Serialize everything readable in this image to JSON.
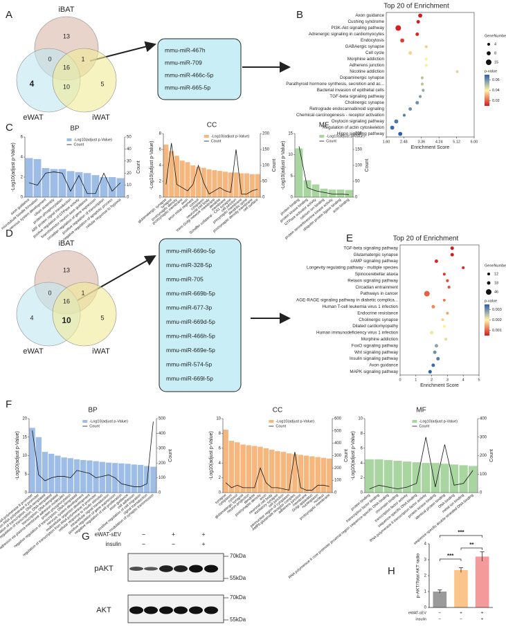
{
  "panel_labels": [
    "A",
    "B",
    "C",
    "D",
    "E",
    "F",
    "G",
    "H"
  ],
  "venn": [
    {
      "sets": {
        "top": "iBAT",
        "left": "eWAT",
        "right": "iWAT"
      },
      "counts": {
        "top": 13,
        "top_left": 0,
        "center": 16,
        "top_right": 1,
        "left": 4,
        "bottom": 10,
        "right": 5
      },
      "highlight": "left"
    },
    {
      "sets": {
        "top": "iBAT",
        "left": "eWAT",
        "right": "iWAT"
      },
      "counts": {
        "top": 13,
        "top_left": 0,
        "center": 16,
        "top_right": 1,
        "left": 4,
        "bottom": 10,
        "right": 5
      },
      "highlight": "bottom"
    }
  ],
  "mirna_lists": [
    [
      "mmu-miR-467h",
      "mmu-miR-709",
      "mmu-miR-466c-5p",
      "mmu-miR-665-5p"
    ],
    [
      "mmu-miR-669o-5p",
      "mmu-miR-328-5p",
      "mmu-miR-705",
      "mmu-miR-669b-5p",
      "mmu-miR-677-3p",
      "mmu-miR-669d-5p",
      "mmu-miR-466h-5p",
      "mmu-miR-669e-5p",
      "mmu-miR-574-5p",
      "mmu-miR-669l-5p"
    ]
  ],
  "chart_data": [
    {
      "type": "dot",
      "title": "Top 20 of Enrichment",
      "categories": [
        "Axon guidance",
        "Cushing syndrome",
        "PI3K-Akt signaling pathway",
        "Adrenergic signaling in cardiomyocytes",
        "Endocytosis",
        "GABAergic synapse",
        "Cell cycle",
        "Morphine addiction",
        "Adherens junction",
        "Nicotine addiction",
        "Dopaminergic synapse",
        "Parathyroid hormone synthesis, secretion and ac...",
        "Bacterial invasion of epithelial cells",
        "TGF-beta signaling pathway",
        "Cholinergic synapse",
        "Retrograde endocannabinoid signaling",
        "Chemical carcinogenesis - receptor activation",
        "Oxytocin signaling pathway",
        "Regulation of actin cytoskeleton",
        "Hippo signaling pathway"
      ],
      "values": [
        3.3,
        3.2,
        2.2,
        3.15,
        2.4,
        3.6,
        2.8,
        3.6,
        3.6,
        5.15,
        3.4,
        3.4,
        3.45,
        3.3,
        3.15,
        2.8,
        2.5,
        2.1,
        1.9,
        2.3
      ],
      "pvalues": [
        0.01,
        0.01,
        0.011,
        0.012,
        0.015,
        0.035,
        0.036,
        0.04,
        0.04,
        0.045,
        0.05,
        0.05,
        0.055,
        0.058,
        0.06,
        0.06,
        0.064,
        0.065,
        0.068,
        0.07
      ],
      "gene_numbers": [
        8,
        6,
        15,
        6,
        8,
        4,
        6,
        4,
        4,
        4,
        4,
        4,
        4,
        4,
        6,
        6,
        4,
        8,
        8,
        8
      ],
      "xlabel": "Enrichment Score",
      "xlim": [
        1.6,
        6.0
      ],
      "xticks": [
        {
          "value": 1.6,
          "label": "1.60"
        },
        {
          "value": 2.48,
          "label": "2.48"
        },
        {
          "value": 3.36,
          "label": "3.36"
        },
        {
          "value": 4.24,
          "label": "4.24"
        },
        {
          "value": 5.12,
          "label": "5.12"
        },
        {
          "value": 6.0,
          "label": "6.00"
        }
      ],
      "size_legend": {
        "title": "GeneNumber",
        "values": [
          4,
          8,
          15
        ]
      },
      "color_legend": {
        "title": "p-value",
        "lim": [
          0.01,
          0.07
        ],
        "ticks": [
          0.06,
          0.04,
          0.02
        ]
      }
    },
    {
      "type": "bar_line",
      "title": "BP",
      "categories": [
        "axon guidance",
        "microtubule bundle formation",
        "nervous system development",
        "cilium assembly",
        "protein phosphorylation",
        "ARF protein signal transduction",
        "positive regulation of GTPase activity",
        "branchiomotor neuron axon guidance",
        "circadian regulation of gene expression",
        "positive regulation of transcription",
        "negative regulation of apoptotic process",
        "cellular response to hypoxia"
      ],
      "series": [
        {
          "name": "-Log10(adjust p-Value)",
          "color": "#9dbde6",
          "values": [
            3.9,
            3.8,
            2.9,
            2.8,
            2.8,
            2.6,
            2.5,
            2.4,
            2.2,
            2.0,
            2.0,
            1.9
          ]
        },
        {
          "name": "Count",
          "color": "#111111",
          "axis": "y2",
          "values": [
            12,
            10,
            20,
            21,
            20,
            5,
            18,
            3,
            3,
            20,
            5,
            12
          ]
        }
      ],
      "ylabel": "-Log10(adjust p-Value)",
      "y2label": "Count",
      "ylim": [
        0,
        6
      ],
      "yticks": [
        0,
        2,
        4,
        6
      ],
      "y2lim": [
        0,
        50
      ],
      "y2ticks": [
        0,
        10,
        20,
        30,
        40,
        50
      ]
    },
    {
      "type": "bar_line",
      "title": "CC",
      "categories": [
        "glutamatergic synapse",
        "synapse",
        "postsynaptic density",
        "postsynaptic membrane",
        "axon",
        "axon initial segment",
        "cytosol",
        "cytoplasm",
        "neuronal cell body",
        "trans-Golgi network membrane",
        "dendrite",
        "membrane",
        "Schaffer collateral - CA1 synapse",
        "cell junction",
        "presynaptic membrane",
        "dendritic spine",
        "postsynaptic density membrane",
        "cell surface"
      ],
      "series": [
        {
          "name": "-Log10(adjust p-Value)",
          "color": "#f6b77e",
          "values": [
            6.6,
            5.8,
            5.2,
            4.6,
            4.4,
            4.0,
            3.8,
            3.7,
            3.5,
            3.4,
            3.3,
            3.2,
            3.1,
            3.1,
            3.0,
            3.0,
            2.9,
            2.9
          ]
        },
        {
          "name": "Count",
          "color": "#111111",
          "axis": "y2",
          "values": [
            40,
            170,
            40,
            30,
            20,
            40,
            100,
            45,
            10,
            20,
            30,
            20,
            15,
            150,
            10,
            10,
            20,
            25
          ]
        }
      ],
      "ylabel": "-Log10(adjust p-Value)",
      "y2label": "Count",
      "ylim": [
        0,
        8
      ],
      "yticks": [
        0,
        2,
        4,
        6,
        8
      ],
      "y2lim": [
        0,
        200
      ],
      "y2ticks": [
        0,
        50,
        100,
        150,
        200
      ]
    },
    {
      "type": "bar_line",
      "title": "MF",
      "categories": [
        "protein binding",
        "protein kinase binding",
        "GTPase activator activity",
        "calcium ion binding",
        "protein serine/threonine kinase activity",
        "ubiquitin protein ligase binding",
        "actin binding"
      ],
      "series": [
        {
          "name": "-Log10(adjust p-Value)",
          "color": "#a8d5a0",
          "values": [
            11.5,
            4,
            3,
            2,
            1.8,
            1.8,
            1.7
          ]
        },
        {
          "name": "Count",
          "color": "#111111",
          "axis": "y2",
          "values": [
            160,
            30,
            20,
            15,
            10,
            10,
            8
          ]
        }
      ],
      "ylabel": "-Log10(adjust p-Value)",
      "y2label": "Count",
      "ylim": [
        0,
        15
      ],
      "yticks": [
        0,
        5,
        10,
        15
      ],
      "y2lim": [
        0,
        200
      ],
      "y2ticks": [
        0,
        50,
        100,
        150,
        200
      ]
    },
    {
      "type": "dot",
      "title": "Top 20 of Enrichment",
      "categories": [
        "TGF-beta signaling pathway",
        "Glutamatergic synapse",
        "cAMP signaling pathway",
        "Longevity regulating pathway - multiple species",
        "Spinocerebellar ataxia",
        "Relaxin signaling pathway",
        "Circadian entrainment",
        "Pathways in cancer",
        "AGE-RAGE signaling pathway in diabetic complica...",
        "Human T-cell leukemia virus 1 infection",
        "Endocrine resistance",
        "Cholinergic synapse",
        "Dilated cardiomyopathy",
        "Human immunodeficiency virus 1 infection",
        "Morphine addiction",
        "FoxO signaling pathway",
        "Wnt signaling pathway",
        "Insulin signaling pathway",
        "Axon guidance",
        "MAPK signaling pathway"
      ],
      "values": [
        3.3,
        3.3,
        2.3,
        4.0,
        2.8,
        3.0,
        3.1,
        1.7,
        2.8,
        2.1,
        3.0,
        2.7,
        2.8,
        2.0,
        2.9,
        2.3,
        2.2,
        2.4,
        2.1,
        1.9
      ],
      "pvalues": [
        0.0005,
        0.0005,
        0.0006,
        0.0006,
        0.0007,
        0.0008,
        0.0009,
        0.001,
        0.0012,
        0.0013,
        0.0015,
        0.0018,
        0.002,
        0.0021,
        0.0022,
        0.0028,
        0.003,
        0.0032,
        0.0034,
        0.0035
      ],
      "gene_numbers": [
        18,
        18,
        18,
        12,
        12,
        12,
        12,
        46,
        12,
        18,
        12,
        12,
        12,
        18,
        12,
        18,
        18,
        18,
        18,
        18
      ],
      "xlabel": "Enrichment Score",
      "xlim": [
        0,
        5
      ],
      "xticks": [
        0,
        1,
        2,
        3,
        4,
        5
      ],
      "size_legend": {
        "title": "GeneNumber",
        "values": [
          12,
          18,
          46
        ]
      },
      "color_legend": {
        "title": "p-value",
        "lim": [
          0.0005,
          0.0035
        ],
        "ticks": [
          0.003,
          0.002,
          0.001
        ]
      }
    },
    {
      "type": "bar_line",
      "title": "BP",
      "categories": [
        "positive regulation of transcription from RNA polymerase II promoter",
        "negative regulation of transcription from RNA polymerase II promoter",
        "positive regulation of transcription, DNA-templated",
        "regulation of transcription, DNA-templated",
        "transcription, DNA-templated",
        "homophilic cell adhesion via plasma membrane adhesion molecules",
        "protein phosphorylation",
        "negative regulation of transcription, DNA-templated",
        "nervous system development",
        "multicellular organism development",
        "regulation of transcription from RNA polymerase II promoter",
        "cellular response to insulin stimulus",
        "intracellular signal transduction",
        "positive regulation of gene expression",
        "negative regulation of cell proliferation",
        "axon guidance",
        "cell adhesion",
        "positive regulation of cell migration",
        "signal transduction",
        "modulation of synaptic transmission"
      ],
      "series": [
        {
          "name": "-Log10(adjust p-Value)",
          "color": "#9dbde6",
          "values": [
            17.5,
            15,
            11,
            10.5,
            10,
            9.5,
            9.3,
            9,
            8.8,
            8.7,
            8.5,
            8.3,
            8.1,
            8,
            7.9,
            7.8,
            7.6,
            7.5,
            7.2,
            7.0
          ]
        },
        {
          "name": "Count",
          "color": "#111111",
          "axis": "y2",
          "values": [
            420,
            120,
            80,
            100,
            110,
            110,
            100,
            150,
            140,
            130,
            100,
            110,
            120,
            100,
            60,
            50,
            40,
            40,
            60,
            480
          ]
        }
      ],
      "ylabel": "-Log10(adjust p-Value)",
      "y2label": "Count",
      "ylim": [
        0,
        20
      ],
      "yticks": [
        0,
        5,
        10,
        15,
        20
      ],
      "y2lim": [
        0,
        500
      ],
      "y2ticks": [
        0,
        100,
        200,
        300,
        400,
        500
      ]
    },
    {
      "type": "bar_line",
      "title": "CC",
      "categories": [
        "synapse",
        "cytoplasm",
        "cytosol",
        "glutamatergic synapse",
        "neuron projection",
        "dendrite",
        "postsynaptic density",
        "axon",
        "neuronal cell body",
        "excitatory synapse",
        "cell junction",
        "perinuclear region of cytoplasm",
        "AMPA glutamate receptor complex",
        "adherens junction",
        "membrane",
        "Golgi apparatus",
        "nucleoplasm",
        "nucleus",
        "postsynaptic membrane"
      ],
      "series": [
        {
          "name": "-Log10(adjust p-Value)",
          "color": "#f6b77e",
          "values": [
            8.5,
            7,
            6.8,
            6.5,
            6.4,
            6.3,
            6.2,
            6.0,
            5.8,
            5.6,
            5.5,
            5.3,
            5.2,
            5.1,
            5.0,
            4.9,
            4.8,
            4.7,
            4.6
          ]
        },
        {
          "name": "Count",
          "color": "#111111",
          "axis": "y2",
          "values": [
            80,
            40,
            60,
            40,
            40,
            40,
            200,
            80,
            40,
            40,
            30,
            20,
            330,
            40,
            20,
            20,
            60,
            60,
            50
          ]
        }
      ],
      "ylabel": "-Log10(adjust p-Value)",
      "y2label": "Count",
      "ylim": [
        0,
        10
      ],
      "yticks": [
        0,
        2,
        4,
        6,
        8,
        10
      ],
      "y2lim": [
        0,
        600
      ],
      "y2ticks": [
        0,
        100,
        200,
        300,
        400,
        500,
        600
      ]
    },
    {
      "type": "bar_line",
      "title": "MF",
      "categories": [
        "protein binding",
        "transcription factor binding",
        "RNA polymerase II core promoter proximal region sequence-specific DNA binding",
        "chromatin binding",
        "transcription factor activity",
        "sequence-specific DNA binding",
        "RNA polymerase II transcription factor activity",
        "protein kinase binding",
        "identical protein binding",
        "DNA binding",
        "metal ion binding",
        "sequence-specific double-stranded DNA binding"
      ],
      "series": [
        {
          "name": "-Log10(adjust p-Value)",
          "color": "#a8d5a0",
          "values": [
            4.5,
            4.5,
            4.4,
            4.3,
            4.2,
            4.1,
            4.0,
            4.0,
            3.9,
            3.8,
            3.7,
            3.6
          ]
        },
        {
          "name": "Count",
          "color": "#111111",
          "axis": "y2",
          "values": [
            20,
            40,
            30,
            20,
            30,
            50,
            300,
            30,
            260,
            40,
            50,
            120
          ]
        }
      ],
      "ylabel": "-Log10(adjust p-Value)",
      "y2label": "Count",
      "ylim": [
        0,
        10
      ],
      "yticks": [
        0,
        2,
        4,
        6,
        8,
        10
      ],
      "y2lim": [
        0,
        400
      ],
      "y2ticks": [
        0,
        100,
        200,
        300,
        400
      ]
    },
    {
      "type": "bar_error",
      "ylabel": "p-AKT/Total AKT radio",
      "values": [
        1.0,
        2.35,
        3.2
      ],
      "errors": [
        0.1,
        0.15,
        0.3
      ],
      "colors": [
        "#9a9a9a",
        "#fbc48a",
        "#f59a9a"
      ],
      "ylim": [
        0,
        4
      ],
      "yticks": [
        0,
        1,
        2,
        3,
        4
      ],
      "rows": [
        {
          "name": "eWAT-sEV",
          "signs": [
            "−",
            "+",
            "+"
          ]
        },
        {
          "name": "insulin",
          "signs": [
            "−",
            "−",
            "+"
          ]
        }
      ],
      "significance": [
        {
          "pair": [
            0,
            1
          ],
          "label": "***"
        },
        {
          "pair": [
            1,
            2
          ],
          "label": "**"
        },
        {
          "pair": [
            0,
            2
          ],
          "label": "***"
        }
      ]
    }
  ],
  "blot": {
    "rows": [
      {
        "name": "eWAT-sEV",
        "signs": [
          "−",
          "+",
          "+"
        ]
      },
      {
        "name": "insulin",
        "signs": [
          "−",
          "−",
          "+"
        ]
      }
    ],
    "proteins": [
      "pAKT",
      "AKT"
    ],
    "markers": [
      "70kDa",
      "55kDa"
    ]
  }
}
